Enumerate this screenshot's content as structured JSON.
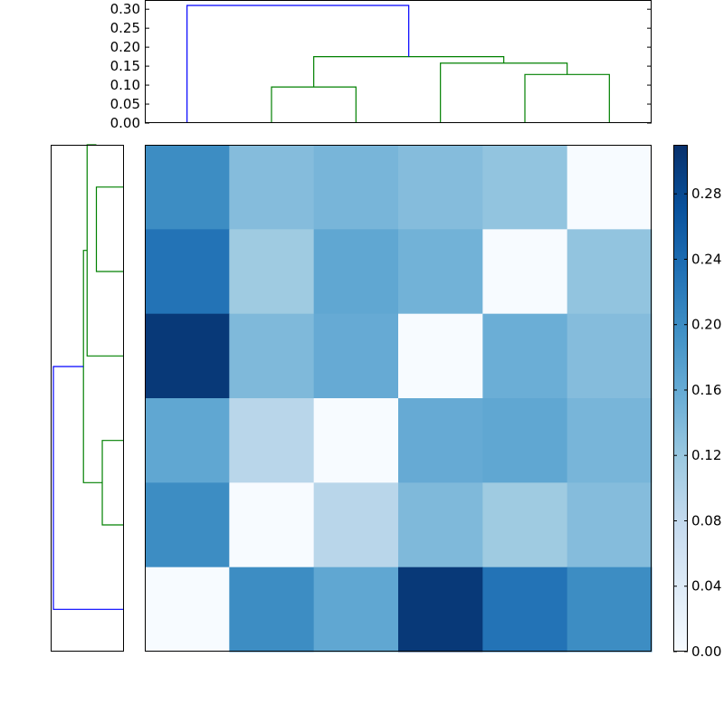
{
  "chart_data": [
    {
      "type": "dendrogram",
      "name": "column-dendrogram",
      "orientation": "top",
      "ylim": [
        0,
        0.32
      ],
      "yticks": [
        "0.00",
        "0.05",
        "0.10",
        "0.15",
        "0.20",
        "0.25",
        "0.30"
      ],
      "leaf_count": 6,
      "links": [
        {
          "left": 1.0,
          "right": 2.0,
          "height": 0.095,
          "left_h": 0.0,
          "right_h": 0.0,
          "color": "#008000"
        },
        {
          "left": 4.0,
          "right": 5.0,
          "height": 0.128,
          "left_h": 0.0,
          "right_h": 0.0,
          "color": "#008000"
        },
        {
          "left": 3.0,
          "right": 4.5,
          "height": 0.158,
          "left_h": 0.0,
          "right_h": 0.128,
          "color": "#008000"
        },
        {
          "left": 1.5,
          "right": 3.75,
          "height": 0.175,
          "left_h": 0.095,
          "right_h": 0.158,
          "color": "#008000"
        },
        {
          "left": 0.0,
          "right": 2.625,
          "height": 0.31,
          "left_h": 0.0,
          "right_h": 0.175,
          "color": "#0000ff"
        }
      ]
    },
    {
      "type": "dendrogram",
      "name": "row-dendrogram",
      "orientation": "left",
      "leaf_count": 6,
      "leaf_order_top_to_bottom": [
        5,
        4,
        3,
        2,
        1,
        0
      ],
      "links": [
        {
          "top": 5.0,
          "bottom": 4.0,
          "height": 0.095,
          "top_h": 0.0,
          "bottom_h": 0.0,
          "color": "#008000"
        },
        {
          "top": 5.5,
          "bottom": 3.0,
          "height": 0.128,
          "top_h": 0.095,
          "bottom_h": 0.0,
          "color": "#008000"
        },
        {
          "top": 2.0,
          "bottom": 1.0,
          "height": 0.074,
          "top_h": 0.0,
          "bottom_h": 0.0,
          "color": "#008000"
        },
        {
          "top": 4.25,
          "bottom": 1.5,
          "height": 0.141,
          "top_h": 0.128,
          "bottom_h": 0.074,
          "color": "#008000"
        },
        {
          "top": 2.875,
          "bottom": 0.0,
          "height": 0.248,
          "top_h": 0.141,
          "bottom_h": 0.0,
          "color": "#0000ff"
        }
      ],
      "xlim": [
        0,
        0.25
      ]
    },
    {
      "type": "heatmap",
      "name": "distance-heatmap",
      "rows": 6,
      "cols": 6,
      "values": [
        [
          0.2,
          0.135,
          0.145,
          0.135,
          0.125,
          0.0
        ],
        [
          0.23,
          0.115,
          0.165,
          0.15,
          0.0,
          0.125
        ],
        [
          0.3,
          0.14,
          0.16,
          0.0,
          0.155,
          0.135
        ],
        [
          0.165,
          0.09,
          0.0,
          0.16,
          0.165,
          0.145
        ],
        [
          0.2,
          0.0,
          0.09,
          0.14,
          0.115,
          0.135
        ],
        [
          0.0,
          0.2,
          0.165,
          0.3,
          0.23,
          0.2
        ]
      ],
      "vmin": 0.0,
      "vmax": 0.31,
      "colormap": "Blues"
    },
    {
      "type": "colorbar",
      "name": "heatmap-colorbar",
      "range": [
        0.0,
        0.31
      ],
      "ticks": [
        "0.00",
        "0.04",
        "0.08",
        "0.12",
        "0.16",
        "0.20",
        "0.24",
        "0.28"
      ]
    }
  ]
}
